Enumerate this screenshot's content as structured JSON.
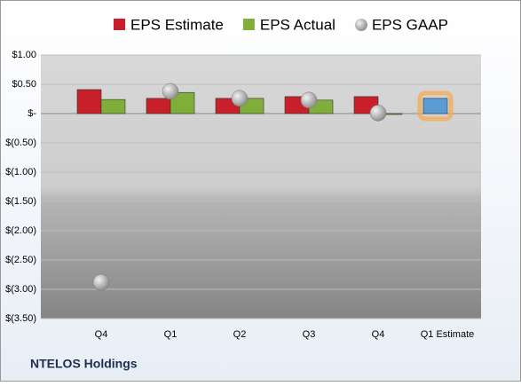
{
  "chart_data": {
    "type": "bar",
    "categories": [
      "Q4",
      "Q1",
      "Q2",
      "Q3",
      "Q4",
      "Q1 Estimate"
    ],
    "series": [
      {
        "name": "EPS Estimate",
        "color": "#c8202a",
        "values": [
          0.41,
          0.26,
          0.26,
          0.29,
          0.29,
          0.26
        ]
      },
      {
        "name": "EPS Actual",
        "color": "#7fae3a",
        "values": [
          0.24,
          0.36,
          0.26,
          0.23,
          0,
          null
        ]
      },
      {
        "name": "EPS GAAP",
        "color": "#a8a8a8",
        "type": "scatter",
        "values": [
          -2.88,
          0.38,
          0.26,
          0.23,
          0.01,
          null
        ]
      }
    ],
    "highlight": {
      "index": 5,
      "color": "#5b9bd5",
      "glow": "#f5a84a"
    },
    "ylim": [
      -3.5,
      1.0
    ],
    "yticks": [
      {
        "value": 1.0,
        "label": "$1.00"
      },
      {
        "value": 0.5,
        "label": "$0.50"
      },
      {
        "value": 0,
        "label": "$-"
      },
      {
        "value": -0.5,
        "label": "$(0.50)"
      },
      {
        "value": -1.0,
        "label": "$(1.00)"
      },
      {
        "value": -1.5,
        "label": "$(1.50)"
      },
      {
        "value": -2.0,
        "label": "$(2.00)"
      },
      {
        "value": -2.5,
        "label": "$(2.50)"
      },
      {
        "value": -3.0,
        "label": "$(3.00)"
      },
      {
        "value": -3.5,
        "label": "$(3.50)"
      }
    ],
    "grid": true,
    "footer": "NTELOS Holdings"
  }
}
